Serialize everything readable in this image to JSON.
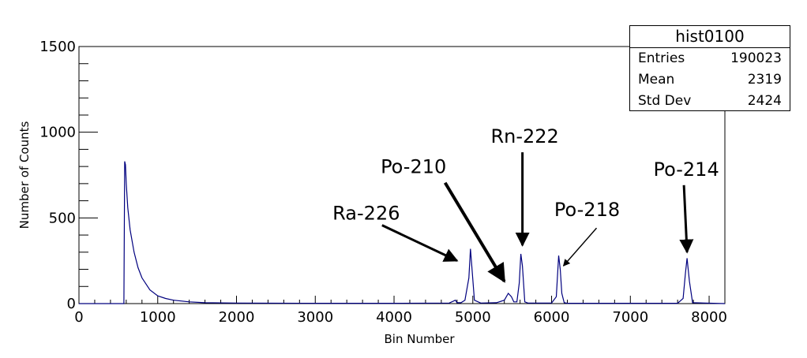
{
  "chart_data": {
    "type": "histogram",
    "title": "",
    "xlabel": "Bin Number",
    "ylabel": "Number of Counts",
    "xlim": [
      0,
      8200
    ],
    "ylim": [
      0,
      1500
    ],
    "x_ticks": [
      0,
      1000,
      2000,
      3000,
      4000,
      5000,
      6000,
      7000,
      8000
    ],
    "y_ticks": [
      0,
      500,
      1000,
      1500
    ],
    "line_color": "#00007f",
    "grid": false,
    "legend": "none",
    "series": [
      {
        "x": [
          0,
          570,
          580,
          590,
          600,
          620,
          650,
          700,
          750,
          800,
          900,
          1000,
          1100,
          1200,
          1400,
          1600,
          2000,
          3000,
          4000,
          4700,
          4780,
          4800,
          4850,
          4900,
          4950,
          4970,
          4990,
          5020,
          5100,
          5300,
          5400,
          5450,
          5490,
          5520,
          5560,
          5590,
          5610,
          5630,
          5660,
          5700,
          6000,
          6060,
          6090,
          6110,
          6130,
          6160,
          6200,
          7600,
          7670,
          7700,
          7720,
          7750,
          7790,
          8200
        ],
        "y": [
          0,
          0,
          830,
          810,
          700,
          560,
          430,
          300,
          210,
          150,
          80,
          45,
          30,
          20,
          10,
          5,
          3,
          2,
          2,
          3,
          20,
          5,
          5,
          20,
          150,
          320,
          200,
          20,
          3,
          5,
          20,
          60,
          40,
          10,
          10,
          120,
          290,
          220,
          10,
          3,
          3,
          40,
          280,
          200,
          60,
          5,
          2,
          2,
          30,
          180,
          265,
          130,
          5,
          0
        ]
      }
    ],
    "annotations": [
      {
        "text": "Ra-226",
        "x": 4800,
        "y": 250
      },
      {
        "text": "Po-210",
        "x": 5400,
        "y": 130
      },
      {
        "text": "Rn-222",
        "x": 5630,
        "y": 340
      },
      {
        "text": "Po-218",
        "x": 6150,
        "y": 220
      },
      {
        "text": "Po-214",
        "x": 7720,
        "y": 300
      }
    ]
  },
  "stats": {
    "title": "hist0100",
    "rows": [
      {
        "label": "Entries",
        "value": "190023"
      },
      {
        "label": "Mean",
        "value": "2319"
      },
      {
        "label": "Std Dev",
        "value": "2424"
      }
    ]
  }
}
